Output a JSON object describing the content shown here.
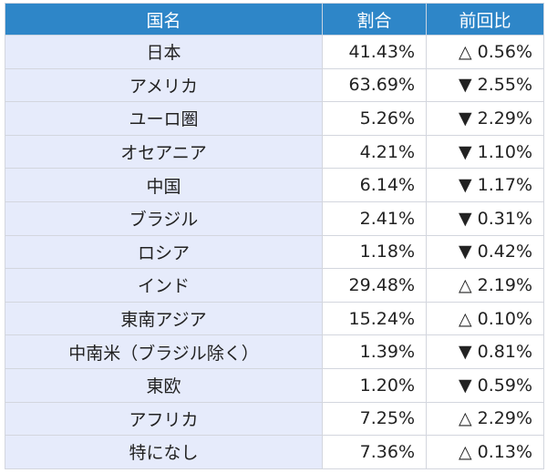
{
  "table": {
    "headers": {
      "name": "国名",
      "share": "割合",
      "change": "前回比"
    },
    "rows": [
      {
        "name": "日本",
        "share": "41.43%",
        "change": "△ 0.56%"
      },
      {
        "name": "アメリカ",
        "share": "63.69%",
        "change": "▼ 2.55%"
      },
      {
        "name": "ユーロ圏",
        "share": "5.26%",
        "change": "▼ 2.29%"
      },
      {
        "name": "オセアニア",
        "share": "4.21%",
        "change": "▼ 1.10%"
      },
      {
        "name": "中国",
        "share": "6.14%",
        "change": "▼ 1.17%"
      },
      {
        "name": "ブラジル",
        "share": "2.41%",
        "change": "▼ 0.31%"
      },
      {
        "name": "ロシア",
        "share": "1.18%",
        "change": "▼ 0.42%"
      },
      {
        "name": "インド",
        "share": "29.48%",
        "change": "△ 2.19%"
      },
      {
        "name": "東南アジア",
        "share": "15.24%",
        "change": "△ 0.10%"
      },
      {
        "name": "中南米（ブラジル除く）",
        "share": "1.39%",
        "change": "▼ 0.81%"
      },
      {
        "name": "東欧",
        "share": "1.20%",
        "change": "▼ 0.59%"
      },
      {
        "name": "アフリカ",
        "share": "7.25%",
        "change": "△ 2.29%"
      },
      {
        "name": "特になし",
        "share": "7.36%",
        "change": "△ 0.13%"
      }
    ]
  },
  "colors": {
    "header_bg": "#2e86c8",
    "name_col_bg": "#e6ebfb",
    "border": "#d3d6de"
  }
}
